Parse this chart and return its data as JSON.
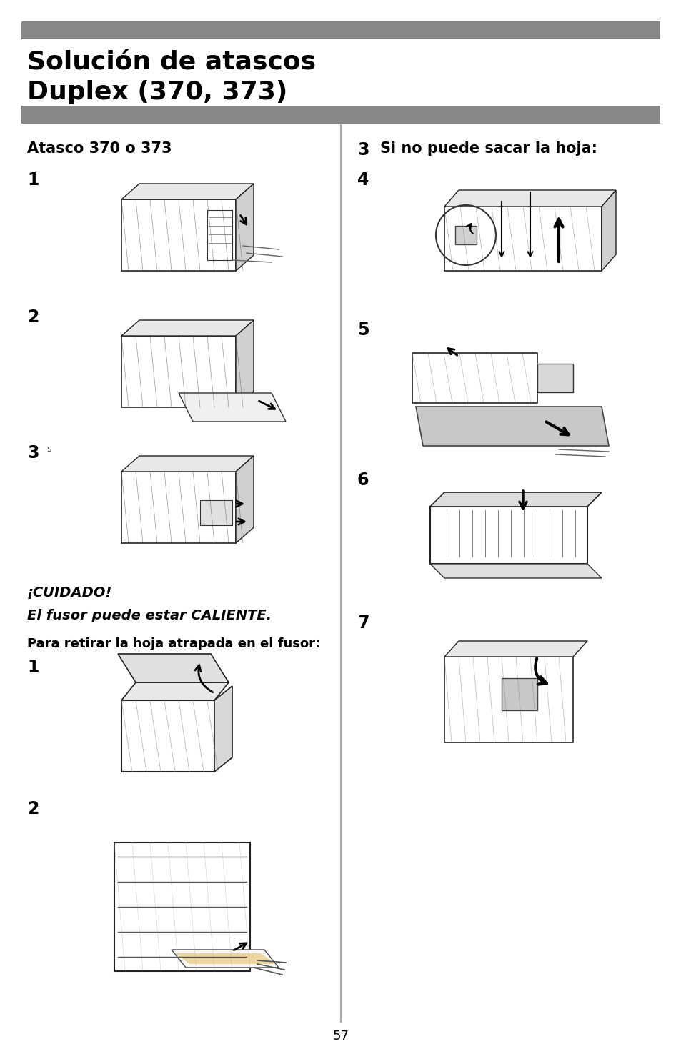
{
  "title_line1": "Solución de atascos",
  "title_line2": "Duplex (370, 373)",
  "bar_color": "#878787",
  "bg_color": "#ffffff",
  "left_section_title": "Atasco 370 o 373",
  "right_num": "3",
  "right_title": "Si no puede sacar la hoja:",
  "warning1": "¡CUIDADO!",
  "warning2": "El fusor puede estar CALIENTE.",
  "para": "Para retirar la hoja atrapada en el fusor:",
  "page_number": "57",
  "left_steps": [
    "1",
    "2",
    "3"
  ],
  "right_steps": [
    "4",
    "5",
    "6",
    "7"
  ],
  "fuse_steps": [
    "1",
    "2"
  ],
  "divider_color": "#aaaaaa",
  "img_edge_color": "#000000"
}
